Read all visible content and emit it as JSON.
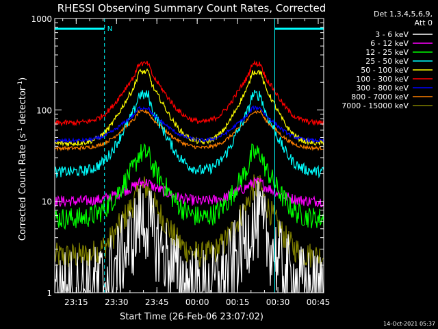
{
  "chart_data": {
    "type": "line",
    "title": "RHESSI Observing Summary Count Rates, Corrected",
    "xlabel": "Start Time (26-Feb-06 23:07:02)",
    "ylabel_main": "Corrected Count Rate (s",
    "ylabel_sup1": "-1",
    "ylabel_mid": " detector",
    "ylabel_sup2": "-1",
    "ylabel_end": ")",
    "y_scale": "log",
    "ylim": [
      1,
      1000
    ],
    "xlim_minutes": [
      0,
      100
    ],
    "x_ticks": [
      {
        "label": "23:15",
        "t": 7.97
      },
      {
        "label": "23:30",
        "t": 22.97
      },
      {
        "label": "23:45",
        "t": 37.97
      },
      {
        "label": "00:00",
        "t": 52.97
      },
      {
        "label": "00:15",
        "t": 67.97
      },
      {
        "label": "00:30",
        "t": 82.97
      },
      {
        "label": "00:45",
        "t": 97.97
      }
    ],
    "y_ticks": [
      {
        "label": "1",
        "value": 1
      },
      {
        "label": "10",
        "value": 10
      },
      {
        "label": "100",
        "value": 100
      },
      {
        "label": "1000",
        "value": 1000
      }
    ],
    "legend_header": [
      "Det 1,3,4,5,6,9,",
      "Att 0"
    ],
    "legend_position": "right",
    "timestamp": "14-Oct-2021 05:37",
    "night_marker": "N",
    "night_markers": [
      {
        "label": "N",
        "t0": 0,
        "t1": 18.5
      },
      {
        "label": "",
        "t0": 81.8,
        "t1": 100
      }
    ],
    "vertical_lines_t": [
      0,
      18.5,
      81.8,
      100
    ],
    "flares_t": [
      33,
      75
    ],
    "series": [
      {
        "name": "3 - 6 keV",
        "color": "#ffffff",
        "baseline": 1.1,
        "peak": 6,
        "noise": 0.45
      },
      {
        "name": "6 - 12 keV",
        "color": "#ff00ff",
        "baseline": 10,
        "peak": 16,
        "noise": 0.06
      },
      {
        "name": "12 - 25 keV",
        "color": "#00ff00",
        "baseline": 6.5,
        "peak": 33,
        "noise": 0.12
      },
      {
        "name": "25 - 50 keV",
        "color": "#00ffff",
        "baseline": 21,
        "peak": 145,
        "noise": 0.06
      },
      {
        "name": "50 - 100 keV",
        "color": "#ffff00",
        "baseline": 43,
        "peak": 260,
        "noise": 0.03
      },
      {
        "name": "100 - 300 keV",
        "color": "#ff0000",
        "baseline": 72,
        "peak": 320,
        "noise": 0.03
      },
      {
        "name": "300 - 800 keV",
        "color": "#0000ff",
        "baseline": 46,
        "peak": 105,
        "noise": 0.02
      },
      {
        "name": "800 - 7000 keV",
        "color": "#ff8000",
        "baseline": 38,
        "peak": 95,
        "noise": 0.02
      },
      {
        "name": "7000 - 15000 keV",
        "color": "#808000",
        "baseline": 2.5,
        "peak": 14,
        "noise": 0.15
      }
    ]
  }
}
